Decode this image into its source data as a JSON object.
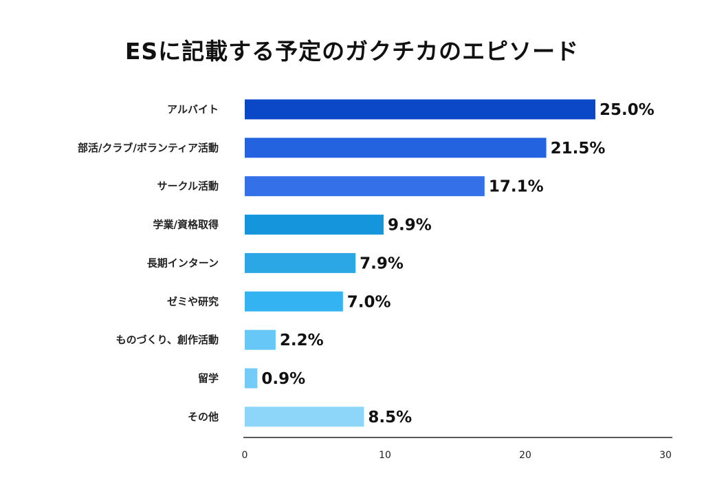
{
  "chart_data": {
    "type": "bar",
    "orientation": "horizontal",
    "title": "ESに記載する予定のガクチカのエピソード",
    "categories": [
      "アルバイト",
      "部活/クラブ/ボランティア活動",
      "サークル活動",
      "学業/資格取得",
      "長期インターン",
      "ゼミや研究",
      "ものづくり、創作活動",
      "留学",
      "その他"
    ],
    "values": [
      25.0,
      21.5,
      17.1,
      9.9,
      7.9,
      7.0,
      2.2,
      0.9,
      8.5
    ],
    "value_labels": [
      "25.0%",
      "21.5%",
      "17.1%",
      "9.9%",
      "7.9%",
      "7.0%",
      "2.2%",
      "0.9%",
      "8.5%"
    ],
    "bar_colors": [
      "#0a48c8",
      "#2463df",
      "#3471e8",
      "#1596dc",
      "#2ba7e6",
      "#33b3f2",
      "#67c7f7",
      "#73cbf7",
      "#8dd6f9"
    ],
    "xlim": [
      0,
      30
    ],
    "xticks": [
      0,
      10,
      20,
      30
    ],
    "tick_labels": [
      "0",
      "10",
      "20",
      "30"
    ],
    "xlabel": "",
    "ylabel": "",
    "grid": false,
    "legend": "none"
  }
}
